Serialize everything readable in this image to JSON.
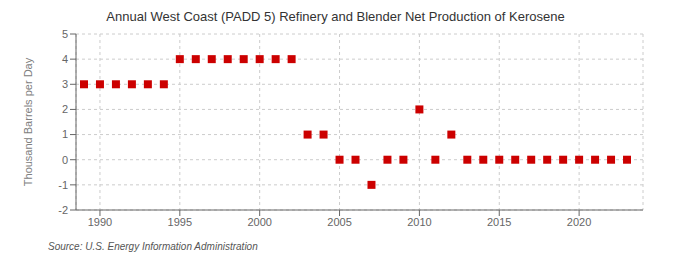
{
  "chart_data": {
    "type": "scatter",
    "title": "Annual West Coast (PADD 5) Refinery and Blender Net Production of Kerosene",
    "y_label": "Thousand Barrels per Day",
    "annotations": [
      "Source: U.S. Energy Information Administration"
    ],
    "x": [
      1989,
      1990,
      1991,
      1992,
      1993,
      1994,
      1995,
      1996,
      1997,
      1998,
      1999,
      2000,
      2001,
      2002,
      2003,
      2004,
      2005,
      2006,
      2007,
      2008,
      2009,
      2010,
      2011,
      2012,
      2013,
      2014,
      2015,
      2016,
      2017,
      2018,
      2019,
      2020,
      2021,
      2022,
      2023
    ],
    "values": [
      3,
      3,
      3,
      3,
      3,
      3,
      4,
      4,
      4,
      4,
      4,
      4,
      4,
      4,
      1,
      1,
      0,
      0,
      -1,
      0,
      0,
      2,
      0,
      1,
      0,
      0,
      0,
      0,
      0,
      0,
      0,
      0,
      0,
      0,
      0
    ],
    "color": "#cc0000",
    "marker": "square",
    "grid": true,
    "xlim": [
      1988.5,
      2024
    ],
    "xticks": [
      1990,
      1995,
      2000,
      2005,
      2010,
      2015,
      2020
    ],
    "ylim": [
      -2,
      5
    ],
    "yticks": [
      -2,
      -1,
      0,
      1,
      2,
      3,
      4,
      5
    ]
  }
}
